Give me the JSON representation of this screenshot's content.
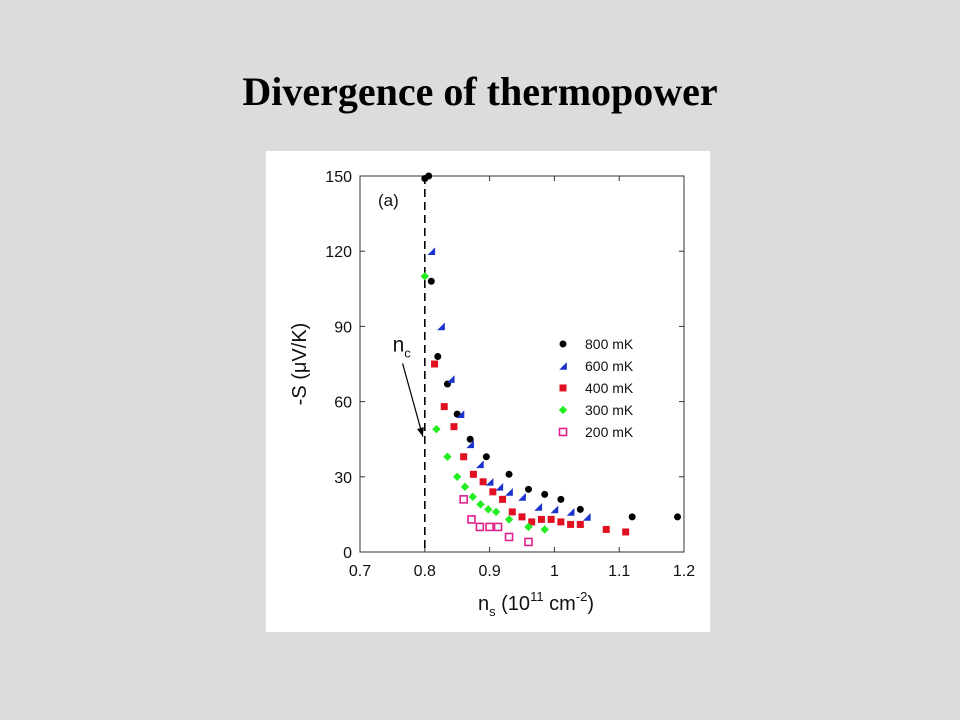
{
  "slide": {
    "title": "Divergence of thermopower"
  },
  "chart_data": {
    "type": "scatter",
    "panel_label": "(a)",
    "xlabel_main": "n",
    "xlabel_sub": "s",
    "xlabel_open": " (10",
    "xlabel_exp": "11",
    "xlabel_unit": " cm",
    "xlabel_unit_exp": "-2",
    "xlabel_close": ")",
    "ylabel": "-S (μV/K)",
    "xlim": [
      0.7,
      1.2
    ],
    "ylim": [
      0,
      150
    ],
    "xticks": [
      0.7,
      0.8,
      0.9,
      1.0,
      1.1,
      1.2
    ],
    "xtick_labels": [
      "0.7",
      "0.8",
      "0.9",
      "1",
      "1.1",
      "1.2"
    ],
    "yticks": [
      0,
      30,
      60,
      90,
      120,
      150
    ],
    "ytick_labels": [
      "0",
      "30",
      "60",
      "90",
      "120",
      "150"
    ],
    "grid": false,
    "legend_position": "right",
    "critical_line": {
      "x": 0.8,
      "style": "dashed"
    },
    "annotation": {
      "text": "n",
      "sub": "c",
      "x": 0.775,
      "y": 80,
      "arrow_to": [
        0.797,
        46
      ]
    },
    "colors": {
      "800 mK": "#000000",
      "600 mK": "#1a33cc",
      "400 mK": "#e01020",
      "300 mK": "#22ee22",
      "200 mK": "#e0208c"
    },
    "series": [
      {
        "name": "800 mK",
        "marker": "circle",
        "x": [
          0.8,
          0.806,
          0.81,
          0.82,
          0.835,
          0.85,
          0.87,
          0.895,
          0.93,
          0.96,
          0.985,
          1.01,
          1.04,
          1.12,
          1.19
        ],
        "y": [
          149,
          150,
          108,
          78,
          67,
          55,
          45,
          38,
          31,
          25,
          23,
          21,
          17,
          14,
          14
        ]
      },
      {
        "name": "600 mK",
        "marker": "triangle",
        "x": [
          0.81,
          0.825,
          0.84,
          0.855,
          0.87,
          0.885,
          0.9,
          0.915,
          0.93,
          0.95,
          0.975,
          1.0,
          1.025,
          1.05
        ],
        "y": [
          120,
          90,
          69,
          55,
          43,
          35,
          28,
          26,
          24,
          22,
          18,
          17,
          16,
          14
        ]
      },
      {
        "name": "400 mK",
        "marker": "square",
        "x": [
          0.815,
          0.83,
          0.845,
          0.86,
          0.875,
          0.89,
          0.905,
          0.92,
          0.935,
          0.95,
          0.965,
          0.98,
          0.995,
          1.01,
          1.025,
          1.04,
          1.08,
          1.11
        ],
        "y": [
          75,
          58,
          50,
          38,
          31,
          28,
          24,
          21,
          16,
          14,
          12,
          13,
          13,
          12,
          11,
          11,
          9,
          8
        ]
      },
      {
        "name": "300 mK",
        "marker": "diamond",
        "x": [
          0.8,
          0.818,
          0.835,
          0.85,
          0.862,
          0.874,
          0.886,
          0.898,
          0.91,
          0.93,
          0.96,
          0.985
        ],
        "y": [
          110,
          49,
          38,
          30,
          26,
          22,
          19,
          17,
          16,
          13,
          10,
          9
        ]
      },
      {
        "name": "200 mK",
        "marker": "open-square",
        "x": [
          0.86,
          0.872,
          0.885,
          0.9,
          0.913,
          0.93,
          0.96
        ],
        "y": [
          21,
          13,
          10,
          10,
          10,
          6,
          4
        ]
      }
    ]
  }
}
